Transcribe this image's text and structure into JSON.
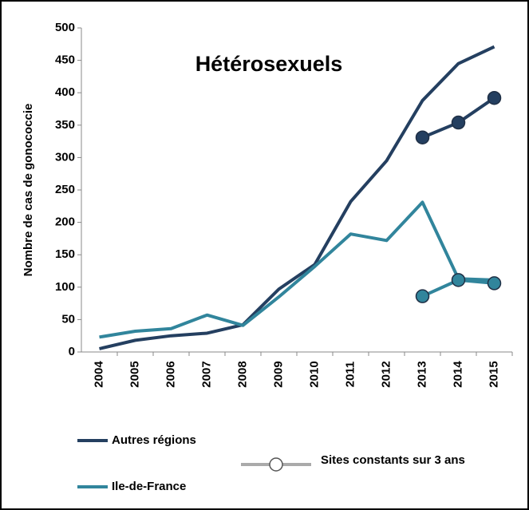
{
  "chart_data": {
    "type": "line",
    "title": "Hétérosexuels",
    "y_label": "Nombre de cas de gonococcie",
    "categories": [
      "2004",
      "2005",
      "2006",
      "2007",
      "2008",
      "2009",
      "2010",
      "2011",
      "2012",
      "2013",
      "2014",
      "2015"
    ],
    "series": [
      {
        "name": "Autres régions",
        "color": "#243f60",
        "values": [
          5,
          18,
          25,
          29,
          42,
          97,
          135,
          232,
          295,
          388,
          445,
          471
        ]
      },
      {
        "name": "Ile-de-France",
        "color": "#31859c",
        "values": [
          23,
          32,
          36,
          57,
          41,
          85,
          132,
          182,
          172,
          231,
          113,
          111
        ]
      },
      {
        "color": "#243f60",
        "markers": true,
        "values": [
          null,
          null,
          null,
          null,
          null,
          null,
          null,
          null,
          null,
          331,
          354,
          392
        ]
      },
      {
        "color": "#31859c",
        "markers": true,
        "values": [
          null,
          null,
          null,
          null,
          null,
          null,
          null,
          null,
          null,
          86,
          111,
          106
        ]
      }
    ],
    "marker_legend": "Sites constants sur 3 ans",
    "ylim": [
      0,
      500
    ],
    "yticks": [
      0,
      50,
      100,
      150,
      200,
      250,
      300,
      350,
      400,
      450,
      500
    ]
  }
}
